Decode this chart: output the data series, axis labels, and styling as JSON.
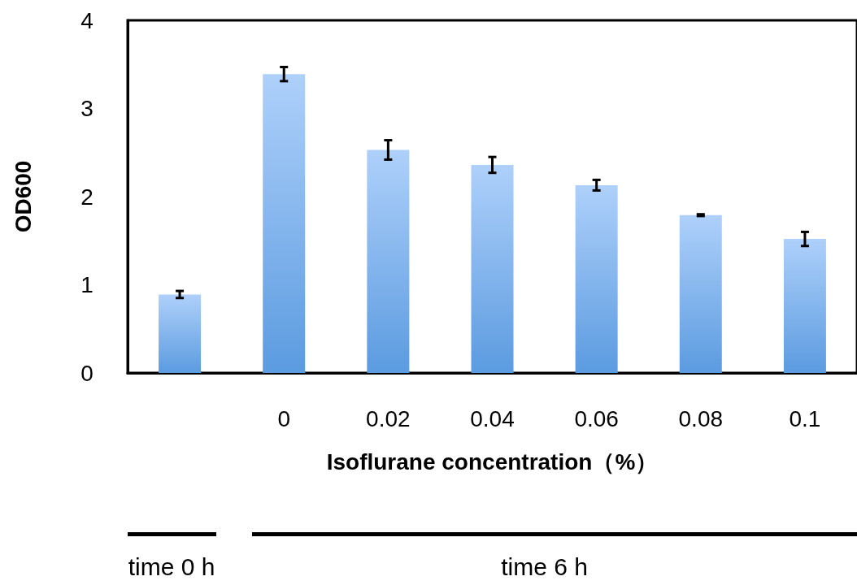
{
  "chart_data": {
    "type": "bar",
    "xlabel": "Isoflurane concentration（%）",
    "ylabel": "OD600",
    "categories": [
      null,
      "0",
      "0.02",
      "0.04",
      "0.06",
      "0.08",
      "0.1"
    ],
    "values": [
      0.89,
      3.39,
      2.53,
      2.36,
      2.13,
      1.79,
      1.52
    ],
    "errors": [
      0.04,
      0.08,
      0.11,
      0.09,
      0.06,
      0.01,
      0.08
    ],
    "color": "#5b9be0",
    "ylim": [
      0,
      4
    ],
    "yticks": [
      0,
      1,
      2,
      3,
      4
    ],
    "annotations": [
      "time 0 h",
      "time 6 h"
    ]
  }
}
